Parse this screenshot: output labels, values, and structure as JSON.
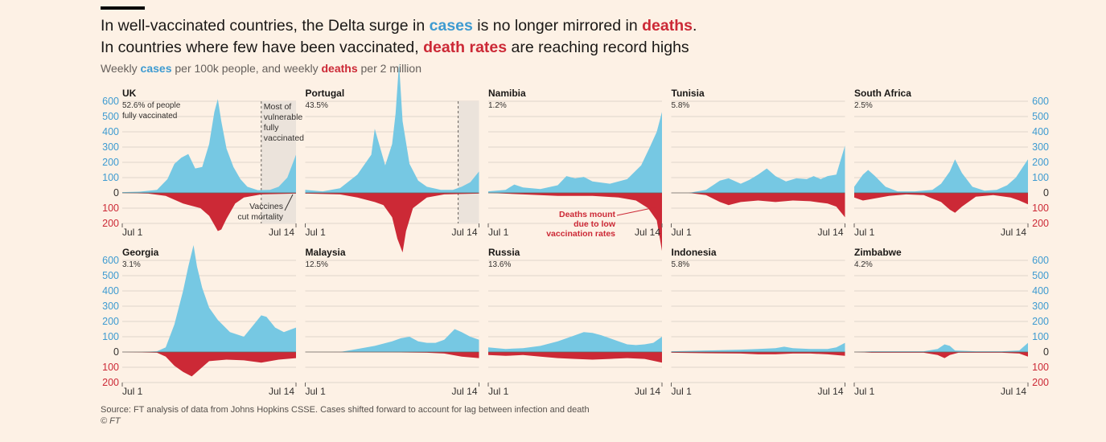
{
  "header": {
    "title_line1": {
      "pre": "In well-vaccinated countries, the Delta surge in ",
      "cases": "cases",
      "mid": " is no longer mirrored in ",
      "deaths": "deaths",
      "post": "."
    },
    "title_line2": {
      "pre": "In countries where few have been vaccinated, ",
      "deaths": "death rates",
      "post": " are reaching record highs"
    },
    "subtitle": {
      "pre": "Weekly ",
      "cases": "cases",
      "mid": " per 100k people, and weekly ",
      "deaths": "deaths",
      "post": " per 2 million"
    }
  },
  "footer": {
    "source": "Source: FT analysis of data from Johns Hopkins CSSE. Cases shifted forward to account for lag between infection and death",
    "credit": "© FT"
  },
  "colors": {
    "cases": "#76c8e3",
    "deaths": "#cc2936",
    "cases_label": "#3e9bd1",
    "shade": "#ebe3db",
    "grid": "#e0d5ca"
  },
  "chart_data": {
    "type": "area",
    "layout": "small multiples, 2 rows x 5 columns, positive cases area above zero and deaths area mirrored below zero",
    "y_ticks_up": [
      600,
      500,
      400,
      300,
      200,
      100,
      0
    ],
    "y_ticks_down": [
      100,
      200
    ],
    "ylim": [
      -200,
      600
    ],
    "x_ticks": [
      "Jul 1",
      "Jul 14"
    ],
    "panels": [
      {
        "country": "UK",
        "vaccinated": "52.6%",
        "vacc_suffix": " of people",
        "vacc_line2": "fully vaccinated",
        "shaded_from": 0.8,
        "annotations": {
          "shade_label": [
            "Most of",
            "vulnerable",
            "fully",
            "vaccinated"
          ],
          "death_label": [
            "Vaccines",
            "cut mortality"
          ]
        },
        "cases": [
          [
            0,
            5
          ],
          [
            0.1,
            8
          ],
          [
            0.2,
            20
          ],
          [
            0.26,
            90
          ],
          [
            0.3,
            190
          ],
          [
            0.34,
            230
          ],
          [
            0.38,
            255
          ],
          [
            0.42,
            160
          ],
          [
            0.46,
            170
          ],
          [
            0.5,
            320
          ],
          [
            0.53,
            530
          ],
          [
            0.55,
            615
          ],
          [
            0.57,
            470
          ],
          [
            0.6,
            290
          ],
          [
            0.64,
            170
          ],
          [
            0.68,
            90
          ],
          [
            0.72,
            40
          ],
          [
            0.78,
            18
          ],
          [
            0.85,
            20
          ],
          [
            0.9,
            40
          ],
          [
            0.95,
            100
          ],
          [
            1,
            250
          ]
        ],
        "deaths": [
          [
            0,
            0
          ],
          [
            0.15,
            5
          ],
          [
            0.25,
            20
          ],
          [
            0.35,
            70
          ],
          [
            0.45,
            100
          ],
          [
            0.5,
            150
          ],
          [
            0.53,
            210
          ],
          [
            0.55,
            250
          ],
          [
            0.57,
            240
          ],
          [
            0.6,
            170
          ],
          [
            0.65,
            70
          ],
          [
            0.7,
            30
          ],
          [
            0.8,
            10
          ],
          [
            1,
            5
          ]
        ]
      },
      {
        "country": "Portugal",
        "vaccinated": "43.5%",
        "shaded_from": 0.88,
        "cases": [
          [
            0,
            20
          ],
          [
            0.1,
            10
          ],
          [
            0.2,
            30
          ],
          [
            0.3,
            120
          ],
          [
            0.38,
            250
          ],
          [
            0.4,
            420
          ],
          [
            0.43,
            300
          ],
          [
            0.46,
            180
          ],
          [
            0.5,
            320
          ],
          [
            0.52,
            520
          ],
          [
            0.54,
            850
          ],
          [
            0.56,
            470
          ],
          [
            0.6,
            190
          ],
          [
            0.65,
            80
          ],
          [
            0.7,
            40
          ],
          [
            0.78,
            20
          ],
          [
            0.85,
            20
          ],
          [
            0.9,
            40
          ],
          [
            0.95,
            70
          ],
          [
            1,
            140
          ]
        ],
        "deaths": [
          [
            0,
            5
          ],
          [
            0.2,
            10
          ],
          [
            0.3,
            30
          ],
          [
            0.4,
            60
          ],
          [
            0.45,
            80
          ],
          [
            0.5,
            160
          ],
          [
            0.53,
            300
          ],
          [
            0.56,
            390
          ],
          [
            0.58,
            250
          ],
          [
            0.62,
            100
          ],
          [
            0.7,
            30
          ],
          [
            0.8,
            10
          ],
          [
            1,
            5
          ]
        ]
      },
      {
        "country": "Namibia",
        "vaccinated": "1.2%",
        "annotations": {
          "death_label": [
            "Deaths mount",
            "due to low",
            "vaccination rates"
          ]
        },
        "cases": [
          [
            0,
            10
          ],
          [
            0.1,
            20
          ],
          [
            0.15,
            55
          ],
          [
            0.2,
            35
          ],
          [
            0.3,
            25
          ],
          [
            0.4,
            50
          ],
          [
            0.45,
            110
          ],
          [
            0.5,
            95
          ],
          [
            0.55,
            105
          ],
          [
            0.6,
            75
          ],
          [
            0.7,
            60
          ],
          [
            0.8,
            90
          ],
          [
            0.88,
            180
          ],
          [
            0.93,
            300
          ],
          [
            0.97,
            400
          ],
          [
            1,
            530
          ]
        ],
        "deaths": [
          [
            0,
            0
          ],
          [
            0.2,
            10
          ],
          [
            0.4,
            20
          ],
          [
            0.6,
            20
          ],
          [
            0.75,
            30
          ],
          [
            0.85,
            50
          ],
          [
            0.92,
            100
          ],
          [
            0.97,
            180
          ],
          [
            1,
            380
          ]
        ]
      },
      {
        "country": "Tunisia",
        "vaccinated": "5.8%",
        "cases": [
          [
            0,
            0
          ],
          [
            0.1,
            0
          ],
          [
            0.2,
            20
          ],
          [
            0.28,
            80
          ],
          [
            0.33,
            95
          ],
          [
            0.4,
            60
          ],
          [
            0.45,
            85
          ],
          [
            0.5,
            120
          ],
          [
            0.55,
            160
          ],
          [
            0.6,
            110
          ],
          [
            0.66,
            75
          ],
          [
            0.72,
            95
          ],
          [
            0.78,
            90
          ],
          [
            0.82,
            110
          ],
          [
            0.86,
            90
          ],
          [
            0.9,
            110
          ],
          [
            0.95,
            120
          ],
          [
            1,
            310
          ]
        ],
        "deaths": [
          [
            0,
            0
          ],
          [
            0.1,
            0
          ],
          [
            0.2,
            15
          ],
          [
            0.28,
            60
          ],
          [
            0.33,
            80
          ],
          [
            0.4,
            60
          ],
          [
            0.5,
            50
          ],
          [
            0.6,
            60
          ],
          [
            0.7,
            50
          ],
          [
            0.8,
            55
          ],
          [
            0.9,
            70
          ],
          [
            0.95,
            90
          ],
          [
            1,
            160
          ]
        ]
      },
      {
        "country": "South Africa",
        "vaccinated": "2.5%",
        "cases": [
          [
            0,
            40
          ],
          [
            0.05,
            120
          ],
          [
            0.08,
            150
          ],
          [
            0.12,
            110
          ],
          [
            0.18,
            40
          ],
          [
            0.25,
            10
          ],
          [
            0.35,
            10
          ],
          [
            0.45,
            20
          ],
          [
            0.5,
            60
          ],
          [
            0.55,
            140
          ],
          [
            0.58,
            220
          ],
          [
            0.62,
            130
          ],
          [
            0.68,
            40
          ],
          [
            0.75,
            15
          ],
          [
            0.82,
            20
          ],
          [
            0.88,
            50
          ],
          [
            0.93,
            100
          ],
          [
            1,
            220
          ]
        ],
        "deaths": [
          [
            0,
            30
          ],
          [
            0.05,
            50
          ],
          [
            0.1,
            40
          ],
          [
            0.2,
            20
          ],
          [
            0.3,
            10
          ],
          [
            0.4,
            15
          ],
          [
            0.5,
            60
          ],
          [
            0.55,
            110
          ],
          [
            0.58,
            130
          ],
          [
            0.62,
            90
          ],
          [
            0.7,
            25
          ],
          [
            0.8,
            15
          ],
          [
            0.9,
            30
          ],
          [
            0.95,
            50
          ],
          [
            1,
            75
          ]
        ]
      },
      {
        "country": "Georgia",
        "vaccinated": "3.1%",
        "cases": [
          [
            0,
            0
          ],
          [
            0.1,
            0
          ],
          [
            0.2,
            5
          ],
          [
            0.25,
            30
          ],
          [
            0.3,
            180
          ],
          [
            0.35,
            400
          ],
          [
            0.38,
            560
          ],
          [
            0.41,
            700
          ],
          [
            0.43,
            560
          ],
          [
            0.46,
            420
          ],
          [
            0.5,
            290
          ],
          [
            0.55,
            210
          ],
          [
            0.62,
            130
          ],
          [
            0.7,
            100
          ],
          [
            0.75,
            170
          ],
          [
            0.8,
            240
          ],
          [
            0.83,
            230
          ],
          [
            0.88,
            160
          ],
          [
            0.93,
            130
          ],
          [
            1,
            160
          ]
        ],
        "deaths": [
          [
            0,
            0
          ],
          [
            0.2,
            5
          ],
          [
            0.25,
            30
          ],
          [
            0.3,
            90
          ],
          [
            0.35,
            130
          ],
          [
            0.4,
            160
          ],
          [
            0.45,
            110
          ],
          [
            0.5,
            60
          ],
          [
            0.6,
            50
          ],
          [
            0.7,
            55
          ],
          [
            0.8,
            70
          ],
          [
            0.9,
            50
          ],
          [
            1,
            40
          ]
        ]
      },
      {
        "country": "Malaysia",
        "vaccinated": "12.5%",
        "cases": [
          [
            0,
            0
          ],
          [
            0.2,
            0
          ],
          [
            0.3,
            20
          ],
          [
            0.4,
            40
          ],
          [
            0.5,
            70
          ],
          [
            0.55,
            90
          ],
          [
            0.6,
            100
          ],
          [
            0.65,
            70
          ],
          [
            0.7,
            60
          ],
          [
            0.75,
            60
          ],
          [
            0.8,
            80
          ],
          [
            0.86,
            150
          ],
          [
            0.9,
            130
          ],
          [
            0.95,
            100
          ],
          [
            1,
            80
          ]
        ],
        "deaths": [
          [
            0,
            0
          ],
          [
            0.5,
            2
          ],
          [
            0.7,
            5
          ],
          [
            0.8,
            10
          ],
          [
            0.9,
            30
          ],
          [
            1,
            40
          ]
        ]
      },
      {
        "country": "Russia",
        "vaccinated": "13.6%",
        "cases": [
          [
            0,
            30
          ],
          [
            0.1,
            20
          ],
          [
            0.2,
            25
          ],
          [
            0.3,
            40
          ],
          [
            0.4,
            70
          ],
          [
            0.5,
            110
          ],
          [
            0.55,
            130
          ],
          [
            0.6,
            125
          ],
          [
            0.65,
            110
          ],
          [
            0.7,
            90
          ],
          [
            0.75,
            70
          ],
          [
            0.8,
            50
          ],
          [
            0.85,
            45
          ],
          [
            0.9,
            50
          ],
          [
            0.95,
            60
          ],
          [
            1,
            100
          ]
        ],
        "deaths": [
          [
            0,
            20
          ],
          [
            0.1,
            25
          ],
          [
            0.2,
            20
          ],
          [
            0.3,
            30
          ],
          [
            0.4,
            40
          ],
          [
            0.5,
            45
          ],
          [
            0.6,
            50
          ],
          [
            0.7,
            45
          ],
          [
            0.8,
            40
          ],
          [
            0.9,
            45
          ],
          [
            1,
            70
          ]
        ]
      },
      {
        "country": "Indonesia",
        "vaccinated": "5.8%",
        "cases": [
          [
            0,
            5
          ],
          [
            0.2,
            10
          ],
          [
            0.4,
            15
          ],
          [
            0.5,
            20
          ],
          [
            0.6,
            25
          ],
          [
            0.65,
            35
          ],
          [
            0.7,
            25
          ],
          [
            0.8,
            20
          ],
          [
            0.9,
            20
          ],
          [
            0.95,
            30
          ],
          [
            1,
            60
          ]
        ],
        "deaths": [
          [
            0,
            5
          ],
          [
            0.2,
            8
          ],
          [
            0.4,
            10
          ],
          [
            0.5,
            15
          ],
          [
            0.6,
            15
          ],
          [
            0.7,
            10
          ],
          [
            0.8,
            10
          ],
          [
            0.9,
            15
          ],
          [
            1,
            25
          ]
        ]
      },
      {
        "country": "Zimbabwe",
        "vaccinated": "4.2%",
        "cases": [
          [
            0,
            0
          ],
          [
            0.1,
            5
          ],
          [
            0.3,
            5
          ],
          [
            0.4,
            5
          ],
          [
            0.48,
            20
          ],
          [
            0.52,
            50
          ],
          [
            0.55,
            40
          ],
          [
            0.58,
            10
          ],
          [
            0.7,
            5
          ],
          [
            0.85,
            5
          ],
          [
            0.95,
            10
          ],
          [
            1,
            60
          ]
        ],
        "deaths": [
          [
            0,
            0
          ],
          [
            0.1,
            5
          ],
          [
            0.4,
            5
          ],
          [
            0.48,
            20
          ],
          [
            0.52,
            40
          ],
          [
            0.55,
            20
          ],
          [
            0.6,
            5
          ],
          [
            0.85,
            5
          ],
          [
            0.95,
            10
          ],
          [
            1,
            30
          ]
        ]
      }
    ]
  }
}
